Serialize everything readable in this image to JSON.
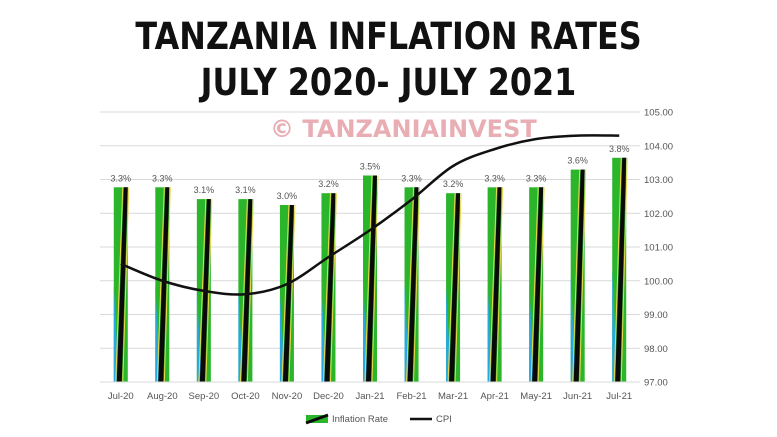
{
  "title": {
    "line1": "TANZANIA INFLATION RATES",
    "line2": "JULY 2020- JULY 2021"
  },
  "watermark": "© TANZANIAINVEST",
  "colors": {
    "bar_green": "#2ab52a",
    "bar_blue": "#29a8e0",
    "bar_black": "#0a0a0a",
    "bar_yellow": "#e8d94a",
    "line": "#111111",
    "grid": "#d9d9d9",
    "text": "#555555"
  },
  "chart_data": {
    "type": "bar+line",
    "categories": [
      "Jul-20",
      "Aug-20",
      "Sep-20",
      "Oct-20",
      "Nov-20",
      "Dec-20",
      "Jan-21",
      "Feb-21",
      "Mar-21",
      "Apr-21",
      "May-21",
      "Jun-21",
      "Jul-21"
    ],
    "series": [
      {
        "name": "Inflation Rate",
        "type": "bar",
        "values": [
          3.3,
          3.3,
          3.1,
          3.1,
          3.0,
          3.2,
          3.5,
          3.3,
          3.2,
          3.3,
          3.3,
          3.6,
          3.8
        ],
        "labels": [
          "3.3%",
          "3.3%",
          "3.1%",
          "3.1%",
          "3.0%",
          "3.2%",
          "3.5%",
          "3.3%",
          "3.2%",
          "3.3%",
          "3.3%",
          "3.6%",
          "3.8%"
        ]
      },
      {
        "name": "CPI",
        "type": "line",
        "axis": "right",
        "values": [
          100.5,
          100.0,
          99.7,
          99.6,
          99.9,
          100.7,
          101.5,
          102.4,
          103.4,
          103.9,
          104.2,
          104.3,
          104.3
        ]
      }
    ],
    "right_axis": {
      "ylim": [
        97,
        105
      ],
      "ticks": [
        "97.00",
        "98.00",
        "99.00",
        "100.00",
        "101.00",
        "102.00",
        "103.00",
        "104.00",
        "105.00"
      ]
    },
    "legend": {
      "position": "bottom",
      "entries": [
        "Inflation Rate",
        "CPI"
      ]
    }
  }
}
